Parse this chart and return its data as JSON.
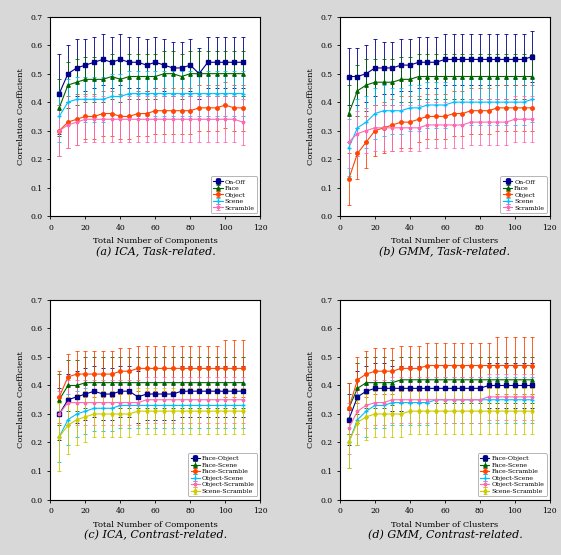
{
  "x_components": [
    5,
    10,
    15,
    20,
    25,
    30,
    35,
    40,
    45,
    50,
    55,
    60,
    65,
    70,
    75,
    80,
    85,
    90,
    95,
    100,
    105,
    110
  ],
  "x_clusters": [
    5,
    10,
    15,
    20,
    25,
    30,
    35,
    40,
    45,
    50,
    55,
    60,
    65,
    70,
    75,
    80,
    85,
    90,
    95,
    100,
    105,
    110
  ],
  "subplot_a_title": "(a) ICA, Task-related.",
  "subplot_b_title": "(b) GMM, Task-related.",
  "subplot_c_title": "(c) ICA, Contrast-related.",
  "subplot_d_title": "(d) GMM, Contrast-related.",
  "task_xlabel_a": "Total Number of Components",
  "task_xlabel_b": "Total Number of Clusters",
  "contrast_xlabel_a": "Total Number of Components",
  "contrast_xlabel_b": "Total Number of Clusters",
  "ylabel": "Correlation Coefficient",
  "ylim_task": [
    0,
    0.7
  ],
  "ylim_contrast": [
    0,
    0.7
  ],
  "task_legend": [
    "On-Off",
    "Face",
    "Object",
    "Scene",
    "Scramble"
  ],
  "contrast_legend": [
    "Face-Object",
    "Face-Scene",
    "Face-Scramble",
    "Object-Scene",
    "Object-Scramble",
    "Scene-Scramble"
  ],
  "task_colors": [
    "#00008B",
    "#006400",
    "#FF4500",
    "#00BFFF",
    "#FF69B4"
  ],
  "contrast_colors": [
    "#00008B",
    "#006400",
    "#FF4500",
    "#00BFFF",
    "#FF69B4",
    "#CCCC00"
  ],
  "task_markers": [
    "s",
    "^",
    "o",
    "+",
    "*"
  ],
  "contrast_markers": [
    "s",
    "^",
    "o",
    "+",
    "*",
    "d"
  ],
  "ica_task_mean": [
    [
      0.43,
      0.5,
      0.52,
      0.53,
      0.54,
      0.55,
      0.54,
      0.55,
      0.54,
      0.54,
      0.53,
      0.54,
      0.53,
      0.52,
      0.52,
      0.53,
      0.5,
      0.54,
      0.54,
      0.54,
      0.54,
      0.54
    ],
    [
      0.38,
      0.46,
      0.47,
      0.48,
      0.48,
      0.48,
      0.49,
      0.48,
      0.49,
      0.49,
      0.49,
      0.49,
      0.5,
      0.5,
      0.49,
      0.5,
      0.5,
      0.5,
      0.5,
      0.5,
      0.5,
      0.5
    ],
    [
      0.3,
      0.33,
      0.34,
      0.35,
      0.35,
      0.36,
      0.36,
      0.35,
      0.35,
      0.36,
      0.36,
      0.37,
      0.37,
      0.37,
      0.37,
      0.37,
      0.38,
      0.38,
      0.38,
      0.39,
      0.38,
      0.38
    ],
    [
      0.35,
      0.4,
      0.41,
      0.41,
      0.41,
      0.41,
      0.42,
      0.42,
      0.43,
      0.43,
      0.43,
      0.43,
      0.43,
      0.43,
      0.43,
      0.43,
      0.43,
      0.43,
      0.43,
      0.43,
      0.43,
      0.43
    ],
    [
      0.3,
      0.32,
      0.33,
      0.34,
      0.34,
      0.34,
      0.34,
      0.34,
      0.34,
      0.34,
      0.34,
      0.34,
      0.34,
      0.34,
      0.34,
      0.34,
      0.34,
      0.34,
      0.34,
      0.34,
      0.34,
      0.33
    ]
  ],
  "ica_task_std": [
    [
      0.14,
      0.1,
      0.1,
      0.09,
      0.09,
      0.09,
      0.09,
      0.09,
      0.09,
      0.09,
      0.09,
      0.09,
      0.09,
      0.09,
      0.09,
      0.09,
      0.09,
      0.09,
      0.09,
      0.09,
      0.09,
      0.09
    ],
    [
      0.1,
      0.08,
      0.08,
      0.08,
      0.08,
      0.08,
      0.08,
      0.08,
      0.08,
      0.08,
      0.08,
      0.08,
      0.08,
      0.08,
      0.08,
      0.08,
      0.08,
      0.08,
      0.08,
      0.08,
      0.08,
      0.08
    ],
    [
      0.09,
      0.09,
      0.09,
      0.08,
      0.08,
      0.08,
      0.08,
      0.08,
      0.08,
      0.08,
      0.08,
      0.08,
      0.08,
      0.08,
      0.08,
      0.08,
      0.08,
      0.08,
      0.08,
      0.08,
      0.08,
      0.08
    ],
    [
      0.09,
      0.08,
      0.08,
      0.08,
      0.08,
      0.08,
      0.08,
      0.08,
      0.08,
      0.08,
      0.08,
      0.08,
      0.08,
      0.08,
      0.08,
      0.08,
      0.08,
      0.08,
      0.08,
      0.08,
      0.08,
      0.08
    ],
    [
      0.09,
      0.08,
      0.08,
      0.08,
      0.08,
      0.08,
      0.08,
      0.08,
      0.08,
      0.08,
      0.08,
      0.08,
      0.08,
      0.08,
      0.08,
      0.08,
      0.08,
      0.08,
      0.08,
      0.08,
      0.08,
      0.08
    ]
  ],
  "gmm_task_mean": [
    [
      0.49,
      0.49,
      0.5,
      0.52,
      0.52,
      0.52,
      0.53,
      0.53,
      0.54,
      0.54,
      0.54,
      0.55,
      0.55,
      0.55,
      0.55,
      0.55,
      0.55,
      0.55,
      0.55,
      0.55,
      0.55,
      0.56
    ],
    [
      0.36,
      0.44,
      0.46,
      0.47,
      0.47,
      0.47,
      0.48,
      0.48,
      0.49,
      0.49,
      0.49,
      0.49,
      0.49,
      0.49,
      0.49,
      0.49,
      0.49,
      0.49,
      0.49,
      0.49,
      0.49,
      0.49
    ],
    [
      0.13,
      0.22,
      0.26,
      0.3,
      0.31,
      0.32,
      0.33,
      0.33,
      0.34,
      0.35,
      0.35,
      0.35,
      0.36,
      0.36,
      0.37,
      0.37,
      0.37,
      0.38,
      0.38,
      0.38,
      0.38,
      0.38
    ],
    [
      0.24,
      0.31,
      0.33,
      0.36,
      0.37,
      0.37,
      0.37,
      0.38,
      0.38,
      0.39,
      0.39,
      0.39,
      0.4,
      0.4,
      0.4,
      0.4,
      0.4,
      0.4,
      0.4,
      0.4,
      0.4,
      0.41
    ],
    [
      0.26,
      0.29,
      0.3,
      0.31,
      0.31,
      0.31,
      0.31,
      0.31,
      0.31,
      0.32,
      0.32,
      0.32,
      0.32,
      0.32,
      0.33,
      0.33,
      0.33,
      0.33,
      0.33,
      0.34,
      0.34,
      0.34
    ]
  ],
  "gmm_task_std": [
    [
      0.1,
      0.1,
      0.1,
      0.1,
      0.09,
      0.09,
      0.09,
      0.09,
      0.09,
      0.09,
      0.09,
      0.09,
      0.09,
      0.09,
      0.09,
      0.09,
      0.09,
      0.09,
      0.09,
      0.09,
      0.09,
      0.09
    ],
    [
      0.1,
      0.09,
      0.09,
      0.08,
      0.08,
      0.08,
      0.08,
      0.08,
      0.08,
      0.08,
      0.08,
      0.08,
      0.08,
      0.08,
      0.08,
      0.08,
      0.08,
      0.08,
      0.08,
      0.08,
      0.08,
      0.08
    ],
    [
      0.09,
      0.09,
      0.09,
      0.09,
      0.09,
      0.09,
      0.09,
      0.09,
      0.08,
      0.08,
      0.08,
      0.08,
      0.08,
      0.08,
      0.08,
      0.08,
      0.08,
      0.08,
      0.08,
      0.08,
      0.08,
      0.08
    ],
    [
      0.1,
      0.1,
      0.09,
      0.09,
      0.09,
      0.08,
      0.08,
      0.08,
      0.08,
      0.08,
      0.08,
      0.08,
      0.08,
      0.08,
      0.08,
      0.08,
      0.08,
      0.08,
      0.08,
      0.08,
      0.08,
      0.08
    ],
    [
      0.09,
      0.08,
      0.08,
      0.08,
      0.08,
      0.08,
      0.08,
      0.08,
      0.08,
      0.08,
      0.08,
      0.08,
      0.08,
      0.08,
      0.08,
      0.08,
      0.08,
      0.08,
      0.08,
      0.08,
      0.08,
      0.08
    ]
  ],
  "ica_contrast_mean": [
    [
      0.3,
      0.35,
      0.36,
      0.37,
      0.38,
      0.37,
      0.37,
      0.38,
      0.38,
      0.36,
      0.37,
      0.37,
      0.37,
      0.37,
      0.38,
      0.38,
      0.38,
      0.38,
      0.38,
      0.38,
      0.38,
      0.38
    ],
    [
      0.35,
      0.4,
      0.4,
      0.41,
      0.41,
      0.41,
      0.41,
      0.41,
      0.41,
      0.41,
      0.41,
      0.41,
      0.41,
      0.41,
      0.41,
      0.41,
      0.41,
      0.41,
      0.41,
      0.41,
      0.41,
      0.41
    ],
    [
      0.36,
      0.43,
      0.44,
      0.44,
      0.44,
      0.44,
      0.44,
      0.45,
      0.45,
      0.46,
      0.46,
      0.46,
      0.46,
      0.46,
      0.46,
      0.46,
      0.46,
      0.46,
      0.46,
      0.46,
      0.46,
      0.46
    ],
    [
      0.22,
      0.28,
      0.3,
      0.31,
      0.32,
      0.32,
      0.32,
      0.33,
      0.33,
      0.33,
      0.33,
      0.33,
      0.33,
      0.33,
      0.33,
      0.33,
      0.33,
      0.33,
      0.33,
      0.33,
      0.33,
      0.33
    ],
    [
      0.3,
      0.34,
      0.34,
      0.34,
      0.34,
      0.34,
      0.34,
      0.34,
      0.34,
      0.34,
      0.35,
      0.35,
      0.35,
      0.35,
      0.35,
      0.35,
      0.35,
      0.35,
      0.35,
      0.35,
      0.35,
      0.35
    ],
    [
      0.22,
      0.26,
      0.28,
      0.29,
      0.3,
      0.3,
      0.3,
      0.3,
      0.3,
      0.31,
      0.31,
      0.31,
      0.31,
      0.31,
      0.31,
      0.31,
      0.31,
      0.31,
      0.31,
      0.31,
      0.31,
      0.31
    ]
  ],
  "ica_contrast_std": [
    [
      0.09,
      0.09,
      0.09,
      0.09,
      0.09,
      0.09,
      0.09,
      0.09,
      0.09,
      0.09,
      0.09,
      0.09,
      0.09,
      0.09,
      0.09,
      0.09,
      0.09,
      0.09,
      0.09,
      0.09,
      0.09,
      0.09
    ],
    [
      0.09,
      0.09,
      0.09,
      0.09,
      0.09,
      0.09,
      0.09,
      0.09,
      0.09,
      0.09,
      0.09,
      0.09,
      0.09,
      0.09,
      0.09,
      0.09,
      0.09,
      0.09,
      0.09,
      0.09,
      0.09,
      0.09
    ],
    [
      0.09,
      0.08,
      0.08,
      0.08,
      0.08,
      0.08,
      0.08,
      0.08,
      0.08,
      0.08,
      0.08,
      0.08,
      0.08,
      0.08,
      0.08,
      0.08,
      0.08,
      0.08,
      0.08,
      0.1,
      0.1,
      0.1
    ],
    [
      0.09,
      0.09,
      0.08,
      0.08,
      0.08,
      0.08,
      0.08,
      0.08,
      0.08,
      0.08,
      0.08,
      0.08,
      0.08,
      0.08,
      0.08,
      0.08,
      0.08,
      0.08,
      0.08,
      0.08,
      0.08,
      0.08
    ],
    [
      0.08,
      0.08,
      0.08,
      0.08,
      0.08,
      0.08,
      0.08,
      0.08,
      0.08,
      0.08,
      0.08,
      0.08,
      0.08,
      0.08,
      0.08,
      0.08,
      0.08,
      0.08,
      0.08,
      0.08,
      0.08,
      0.08
    ],
    [
      0.12,
      0.1,
      0.09,
      0.09,
      0.08,
      0.08,
      0.08,
      0.08,
      0.08,
      0.08,
      0.08,
      0.08,
      0.08,
      0.08,
      0.08,
      0.08,
      0.08,
      0.08,
      0.08,
      0.08,
      0.08,
      0.08
    ]
  ],
  "gmm_contrast_mean": [
    [
      0.28,
      0.36,
      0.38,
      0.39,
      0.39,
      0.39,
      0.39,
      0.39,
      0.39,
      0.39,
      0.39,
      0.39,
      0.39,
      0.39,
      0.39,
      0.39,
      0.4,
      0.4,
      0.4,
      0.4,
      0.4,
      0.4
    ],
    [
      0.32,
      0.39,
      0.41,
      0.41,
      0.41,
      0.41,
      0.42,
      0.42,
      0.42,
      0.42,
      0.42,
      0.42,
      0.42,
      0.42,
      0.42,
      0.42,
      0.42,
      0.42,
      0.42,
      0.42,
      0.42,
      0.42
    ],
    [
      0.32,
      0.42,
      0.44,
      0.45,
      0.45,
      0.45,
      0.46,
      0.46,
      0.46,
      0.47,
      0.47,
      0.47,
      0.47,
      0.47,
      0.47,
      0.47,
      0.47,
      0.47,
      0.47,
      0.47,
      0.47,
      0.47
    ],
    [
      0.2,
      0.28,
      0.31,
      0.33,
      0.33,
      0.34,
      0.34,
      0.34,
      0.34,
      0.34,
      0.35,
      0.35,
      0.35,
      0.35,
      0.35,
      0.35,
      0.35,
      0.35,
      0.35,
      0.35,
      0.35,
      0.35
    ],
    [
      0.25,
      0.31,
      0.33,
      0.34,
      0.34,
      0.35,
      0.35,
      0.35,
      0.35,
      0.35,
      0.35,
      0.35,
      0.35,
      0.35,
      0.35,
      0.35,
      0.36,
      0.36,
      0.36,
      0.36,
      0.36,
      0.36
    ],
    [
      0.2,
      0.27,
      0.29,
      0.3,
      0.3,
      0.3,
      0.3,
      0.31,
      0.31,
      0.31,
      0.31,
      0.31,
      0.31,
      0.31,
      0.31,
      0.31,
      0.31,
      0.31,
      0.31,
      0.31,
      0.31,
      0.31
    ]
  ],
  "gmm_contrast_std": [
    [
      0.09,
      0.09,
      0.09,
      0.09,
      0.09,
      0.08,
      0.08,
      0.08,
      0.08,
      0.08,
      0.08,
      0.08,
      0.08,
      0.08,
      0.08,
      0.08,
      0.08,
      0.08,
      0.08,
      0.08,
      0.08,
      0.08
    ],
    [
      0.09,
      0.09,
      0.09,
      0.09,
      0.09,
      0.08,
      0.08,
      0.08,
      0.08,
      0.08,
      0.08,
      0.08,
      0.08,
      0.08,
      0.08,
      0.08,
      0.08,
      0.08,
      0.08,
      0.08,
      0.08,
      0.08
    ],
    [
      0.09,
      0.08,
      0.08,
      0.08,
      0.08,
      0.08,
      0.08,
      0.08,
      0.08,
      0.08,
      0.08,
      0.08,
      0.08,
      0.08,
      0.08,
      0.08,
      0.08,
      0.1,
      0.1,
      0.1,
      0.1,
      0.1
    ],
    [
      0.09,
      0.09,
      0.09,
      0.08,
      0.08,
      0.08,
      0.08,
      0.08,
      0.08,
      0.08,
      0.08,
      0.08,
      0.08,
      0.08,
      0.08,
      0.08,
      0.08,
      0.08,
      0.08,
      0.08,
      0.08,
      0.08
    ],
    [
      0.09,
      0.08,
      0.08,
      0.08,
      0.08,
      0.08,
      0.08,
      0.08,
      0.08,
      0.08,
      0.08,
      0.08,
      0.08,
      0.08,
      0.08,
      0.08,
      0.08,
      0.08,
      0.08,
      0.08,
      0.08,
      0.08
    ],
    [
      0.09,
      0.08,
      0.08,
      0.08,
      0.08,
      0.08,
      0.08,
      0.08,
      0.08,
      0.08,
      0.08,
      0.08,
      0.08,
      0.08,
      0.08,
      0.08,
      0.08,
      0.08,
      0.08,
      0.08,
      0.08,
      0.08
    ]
  ],
  "figure_facecolor": "#d8d8d8",
  "axes_facecolor": "#ffffff"
}
